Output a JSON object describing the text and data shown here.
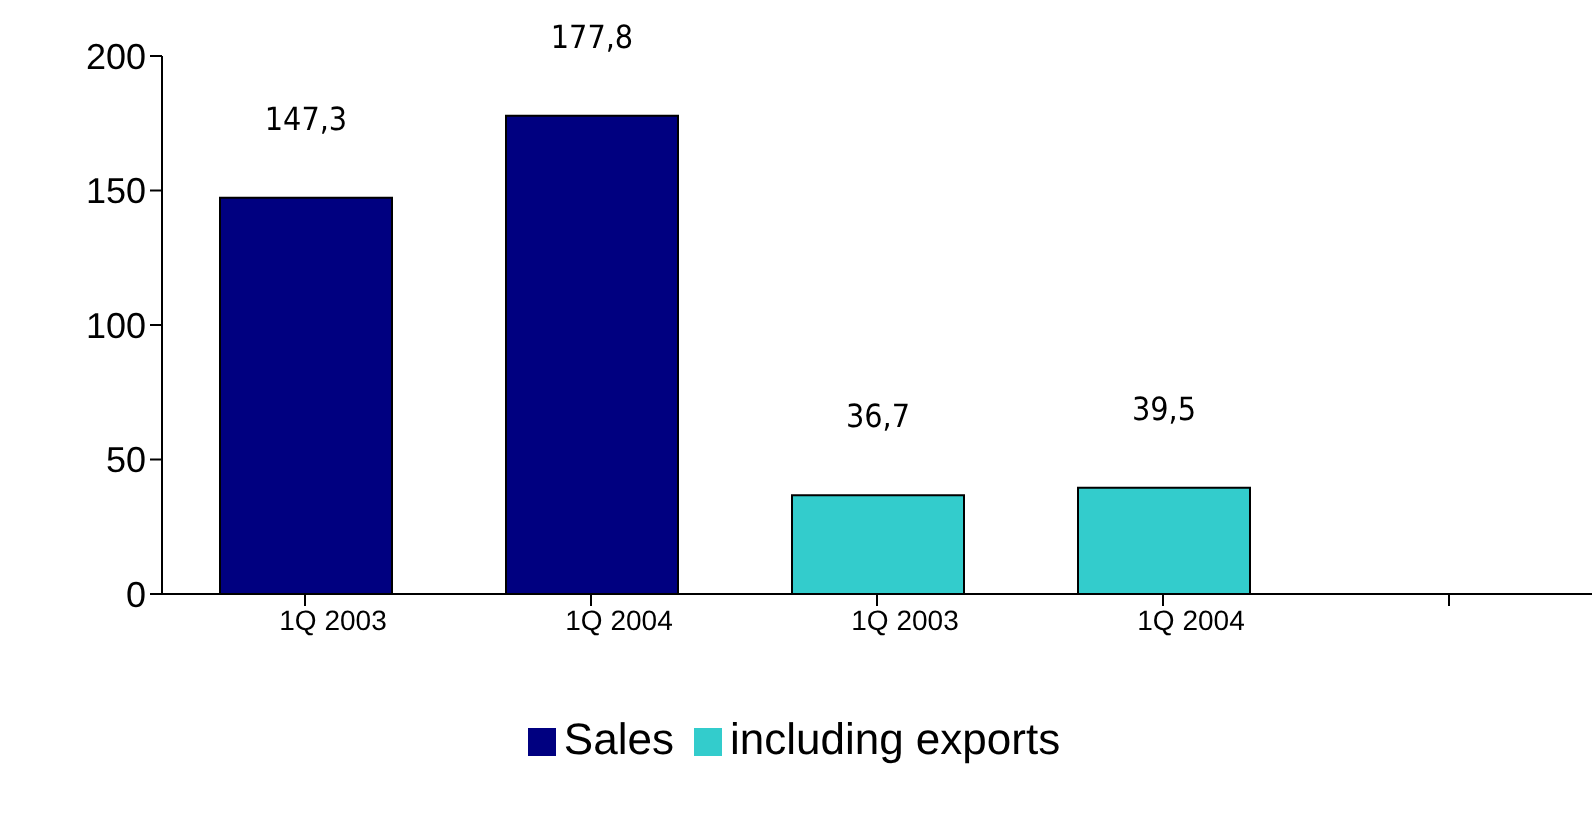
{
  "chart_data": {
    "type": "bar",
    "categories": [
      "1Q 2003",
      "1Q 2004",
      "1Q 2003",
      "1Q 2004",
      null
    ],
    "series": [
      {
        "name": "Sales",
        "color": "#000080",
        "values": [
          147.3,
          177.8,
          null,
          null,
          null
        ],
        "value_labels": [
          "147,3",
          "177,8",
          null,
          null,
          null
        ]
      },
      {
        "name": "including exports",
        "color": "#33cccc",
        "values": [
          null,
          null,
          36.7,
          39.5,
          null
        ],
        "value_labels": [
          null,
          null,
          "36,7",
          "39,5",
          null
        ]
      }
    ],
    "ylim": [
      0,
      200
    ],
    "yticks": [
      0,
      50,
      100,
      150,
      200
    ],
    "grid": false,
    "legend": "bottom"
  }
}
